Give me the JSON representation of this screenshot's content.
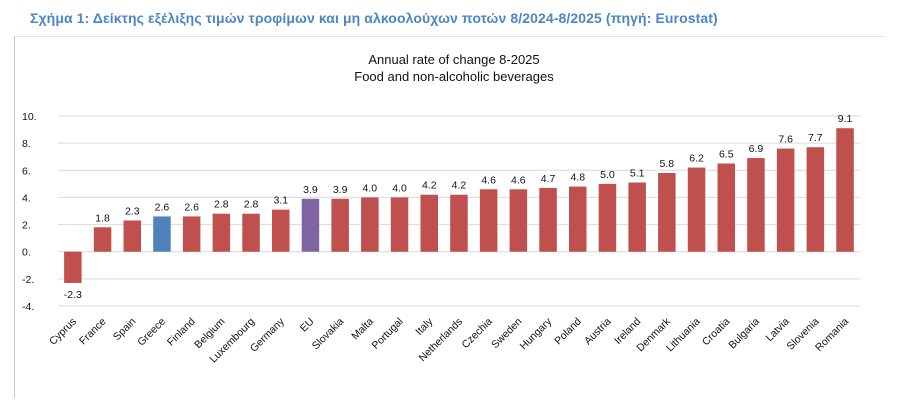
{
  "caption": "Σχήμα 1: Δείκτης εξέλιξης τιμών τροφίμων και μη αλκοολούχων ποτών 8/2024-8/2025 (πηγή: Eurostat)",
  "colors": {
    "default": "#c0504d",
    "greece": "#4f81bd",
    "eu": "#8064a2",
    "caption": "#4a86c8"
  },
  "chart_data": {
    "type": "bar",
    "title": "Annual rate of change 8-2025",
    "subtitle": "Food and non-alcoholic beverages",
    "xlabel": "",
    "ylabel": "",
    "ylim": [
      -4,
      10
    ],
    "yticks": [
      "10.",
      "8.",
      "6.",
      "4.",
      "2.",
      "0.",
      "-2.",
      "-4."
    ],
    "ytick_values": [
      10,
      8,
      6,
      4,
      2,
      0,
      -2,
      -4
    ],
    "grid": true,
    "categories": [
      "Cyprus",
      "France",
      "Spain",
      "Greece",
      "Finland",
      "Belgium",
      "Luxembourg",
      "Germany",
      "EU",
      "Slovakia",
      "Malta",
      "Portugal",
      "Italy",
      "Netherlands",
      "Czechia",
      "Sweden",
      "Hungary",
      "Poland",
      "Austria",
      "Ireland",
      "Denmark",
      "Lithuania",
      "Croatia",
      "Bulgaria",
      "Latvia",
      "Slovenia",
      "Romania"
    ],
    "values": [
      -2.3,
      1.8,
      2.3,
      2.6,
      2.6,
      2.8,
      2.8,
      3.1,
      3.9,
      3.9,
      4.0,
      4.0,
      4.2,
      4.2,
      4.6,
      4.6,
      4.7,
      4.8,
      5.0,
      5.1,
      5.8,
      6.2,
      6.5,
      6.9,
      7.6,
      7.7,
      9.1
    ],
    "value_labels": [
      "-2.3",
      "1.8",
      "2.3",
      "2.6",
      "2.6",
      "2.8",
      "2.8",
      "3.1",
      "3.9",
      "3.9",
      "4.0",
      "4.0",
      "4.2",
      "4.2",
      "4.6",
      "4.6",
      "4.7",
      "4.8",
      "5.0",
      "5.1",
      "5.8",
      "6.2",
      "6.5",
      "6.9",
      "7.6",
      "7.7",
      "9.1"
    ],
    "highlight": {
      "Greece": "greece",
      "EU": "eu"
    }
  }
}
